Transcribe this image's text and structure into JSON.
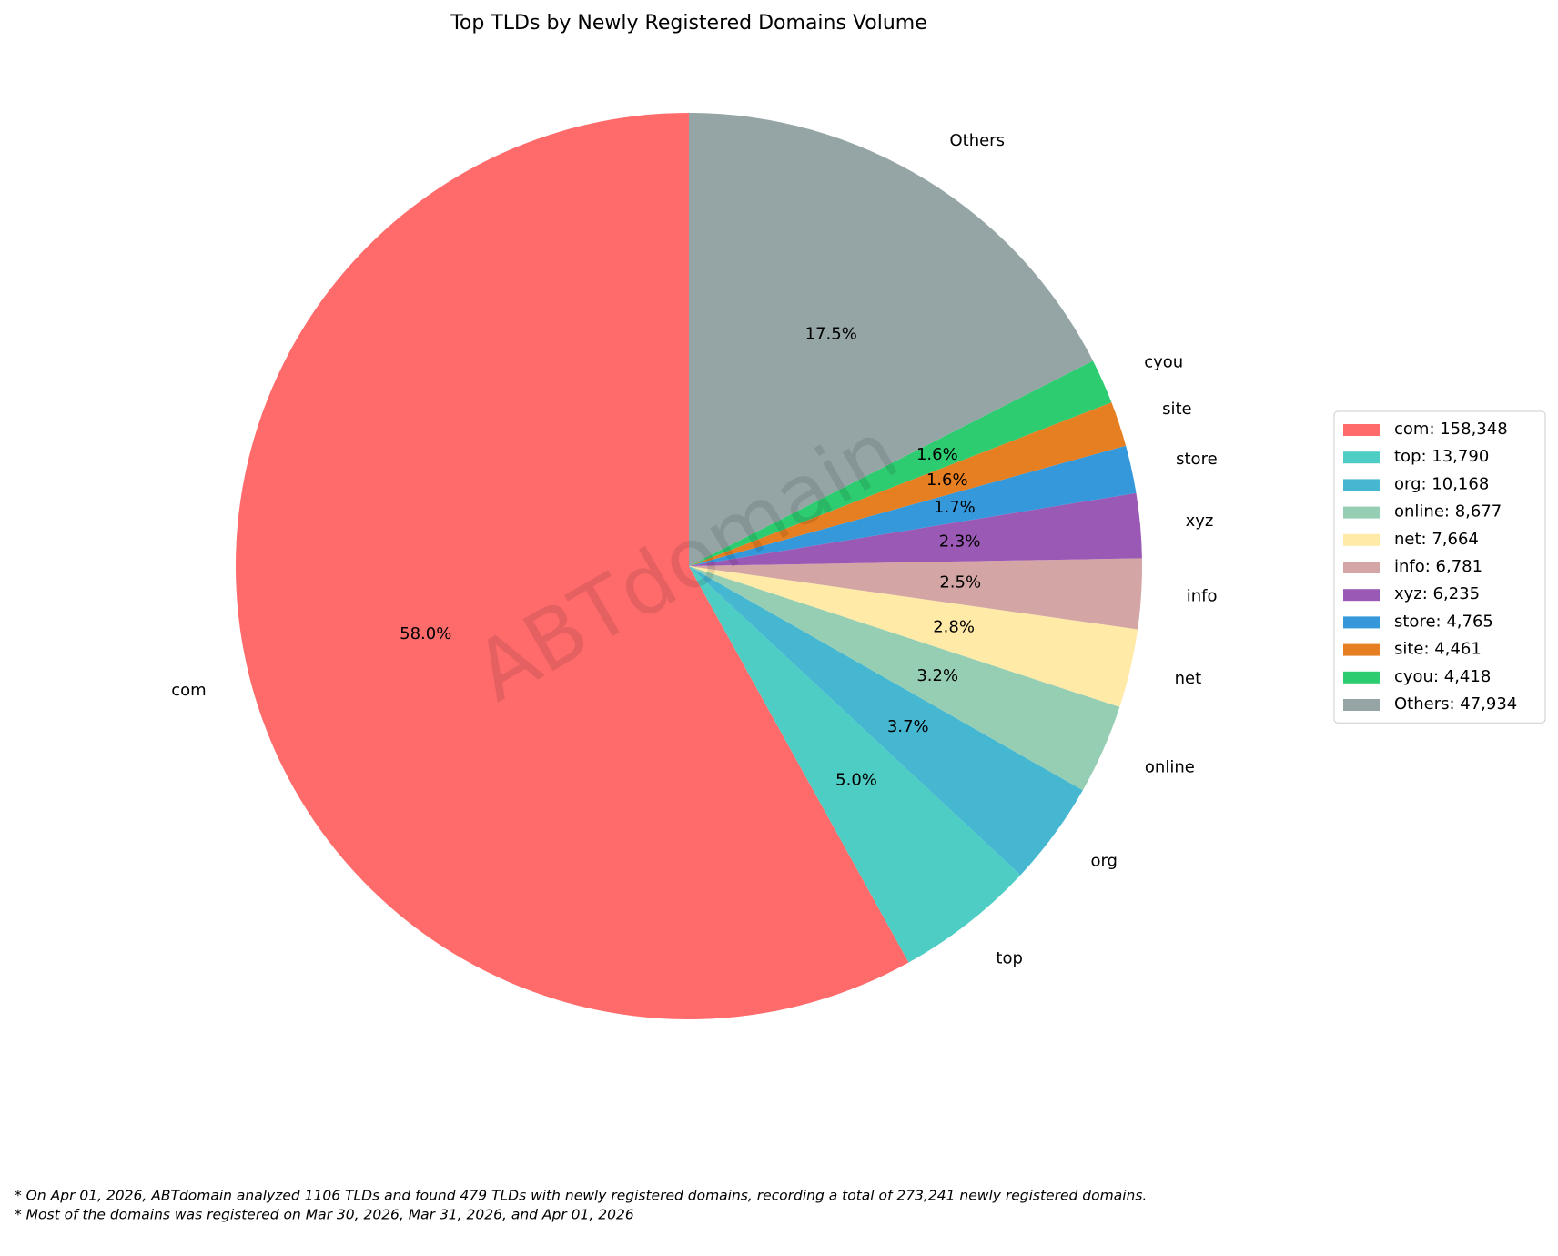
{
  "chart_data": {
    "type": "pie",
    "title": "Top TLDs by Newly Registered Domains Volume",
    "categories": [
      "com",
      "top",
      "org",
      "online",
      "net",
      "info",
      "xyz",
      "store",
      "site",
      "cyou",
      "Others"
    ],
    "values": [
      58.0,
      5.0,
      3.7,
      3.2,
      2.8,
      2.5,
      2.3,
      1.7,
      1.6,
      1.6,
      17.5
    ],
    "value_labels": [
      "58.0%",
      "5.0%",
      "3.7%",
      "3.2%",
      "2.8%",
      "2.5%",
      "2.3%",
      "1.7%",
      "1.6%",
      "1.6%",
      "17.5%"
    ],
    "colors": [
      "#ff6b6b",
      "#4ecdc4",
      "#45b7d1",
      "#96ceb4",
      "#ffeaa7",
      "#d4a5a5",
      "#9b59b6",
      "#3498db",
      "#e67e22",
      "#2ecc71",
      "#95a5a6"
    ],
    "legend_labels": [
      "com: 158,348",
      "top: 13,790",
      "org: 10,168",
      "online: 8,677",
      "net: 7,664",
      "info: 6,781",
      "xyz: 6,235",
      "store: 4,765",
      "site: 4,461",
      "cyou: 4,418",
      "Others: 47,934"
    ],
    "legend_position": "right",
    "watermark": "ABTdomain",
    "footnotes": [
      "* On Apr 01, 2026, ABTdomain analyzed 1106 TLDs and found 479 TLDs with newly registered domains, recording a total of 273,241 newly registered domains.",
      "* Most of the domains was registered on Mar 30, 2026, Mar 31, 2026, and Apr 01, 2026"
    ]
  }
}
